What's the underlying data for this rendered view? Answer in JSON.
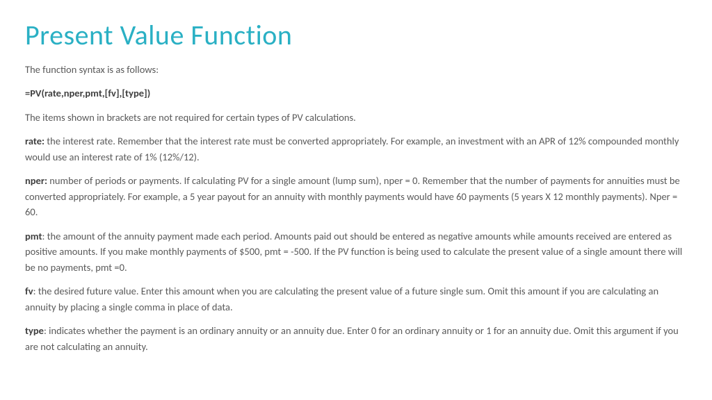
{
  "title": "Present Value Function",
  "intro": "The function syntax is as follows:",
  "syntax": "=PV(rate,nper,pmt,[fv],[type])",
  "brackets_note": "The items shown in brackets are not required for certain types of PV calculations.",
  "params": {
    "rate": {
      "label": "rate:",
      "text": " the interest rate. Remember that the interest rate must be converted appropriately.  For example, an investment with an APR of 12% compounded monthly would use an interest rate of 1% (12%/12)."
    },
    "nper": {
      "label": "nper:",
      "text": " number of periods or payments.  If calculating PV for a single amount (lump sum), nper = 0.  Remember that the number of payments for annuities must be converted appropriately.  For example, a 5 year payout for an annuity with monthly payments would have 60 payments (5 years X 12 monthly payments). Nper = 60."
    },
    "pmt": {
      "label": "pmt",
      "text": ": the amount of the annuity payment made each period.  Amounts paid out should be entered as negative amounts while amounts received are entered as positive amounts. If you make monthly payments of $500, pmt = -500.  If the PV function is being used to calculate the present value of a single amount there will be no payments, pmt =0."
    },
    "fv": {
      "label": "fv",
      "text": ": the desired future value.  Enter this amount when you are calculating the present value of a future single sum. Omit this amount if you are calculating an annuity by placing a single comma in place of data."
    },
    "type": {
      "label": "type",
      "text": ": indicates whether the payment is an ordinary annuity or an annuity due.  Enter 0 for an ordinary annuity or 1 for an annuity due.  Omit this argument if you are not calculating an annuity."
    }
  },
  "colors": {
    "title": "#2ab0c4",
    "body": "#595959",
    "bold": "#404040",
    "background": "#ffffff"
  },
  "fonts": {
    "title_size": 40,
    "body_size": 14.5,
    "title_weight": 300,
    "body_weight": 300,
    "bold_weight": 600
  }
}
